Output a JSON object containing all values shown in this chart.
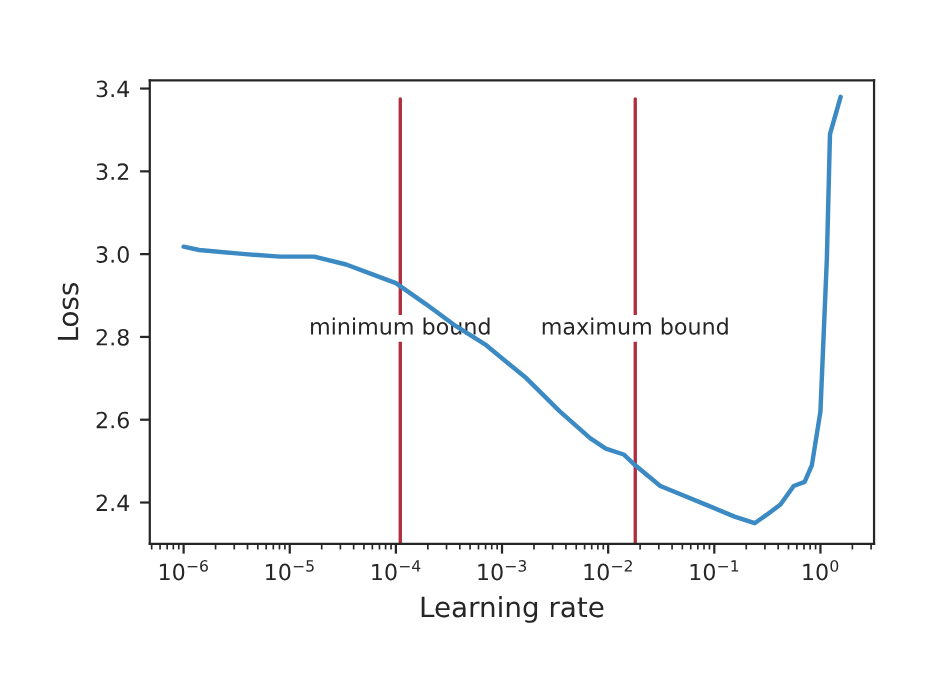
{
  "chart_data": {
    "type": "line",
    "xlabel": "Learning rate",
    "ylabel": "Loss",
    "log": "x",
    "grid": false,
    "legend": false,
    "marker": "none",
    "line_style": "solid",
    "xlim": [
      4.8e-07,
      3.2
    ],
    "ylim": [
      2.3,
      3.42
    ],
    "xticks": [
      {
        "value": 1e-06,
        "label": "10$^{−6}$"
      },
      {
        "value": 1e-05,
        "label": "10$^{−5}$"
      },
      {
        "value": 0.0001,
        "label": "10$^{−4}$"
      },
      {
        "value": 0.001,
        "label": "10$^{−3}$"
      },
      {
        "value": 0.01,
        "label": "10$^{−2}$"
      },
      {
        "value": 0.1,
        "label": "10$^{−1}$"
      },
      {
        "value": 1,
        "label": "10$^{0}$"
      }
    ],
    "yticks": [
      {
        "value": 2.4,
        "label": "2.4"
      },
      {
        "value": 2.6,
        "label": "2.6"
      },
      {
        "value": 2.8,
        "label": "2.8"
      },
      {
        "value": 3.0,
        "label": "3.0"
      },
      {
        "value": 3.2,
        "label": "3.2"
      },
      {
        "value": 3.4,
        "label": "3.4"
      }
    ],
    "series": [
      {
        "color": "#3c8ac4",
        "x": [
          1e-06,
          1.4e-06,
          3.8e-06,
          8.1e-06,
          1.7e-05,
          3.4e-05,
          6.2e-05,
          0.0001,
          0.00019,
          0.00035,
          0.00071,
          0.0017,
          0.0035,
          0.0068,
          0.0095,
          0.014,
          0.018,
          0.031,
          0.048,
          0.083,
          0.155,
          0.24,
          0.31,
          0.42,
          0.56,
          0.71,
          0.83,
          1.0,
          1.15,
          1.23,
          1.55
        ],
        "values": [
          3.018,
          3.01,
          3.0,
          2.994,
          2.994,
          2.975,
          2.95,
          2.93,
          2.88,
          2.83,
          2.78,
          2.7,
          2.62,
          2.555,
          2.53,
          2.516,
          2.49,
          2.44,
          2.42,
          2.395,
          2.366,
          2.35,
          2.37,
          2.395,
          2.44,
          2.45,
          2.49,
          2.62,
          2.99,
          3.29,
          3.38
        ]
      }
    ],
    "ref_lines": [
      {
        "axis": "x",
        "value": 0.00011,
        "label": "minimum bound",
        "color": "#b22c3c",
        "line_style": "solid"
      },
      {
        "axis": "x",
        "value": 0.018,
        "label": "maximum bound",
        "color": "#b22c3c",
        "line_style": "solid"
      }
    ]
  }
}
